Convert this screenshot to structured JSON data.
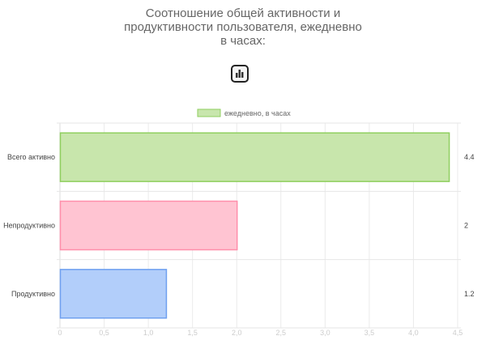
{
  "title": "Соотношение общей активности и продуктивности пользователя, ежедневно в часах:",
  "chart_type_button_icon": "bar-chart-icon",
  "chart_data": {
    "type": "bar",
    "orientation": "horizontal",
    "categories": [
      "Всего активно",
      "Непродуктивно",
      "Продуктивно"
    ],
    "series": [
      {
        "name": "ежедневно, в часах",
        "values": [
          4.4,
          2,
          1.2
        ]
      }
    ],
    "bar_colors": [
      "#c8e6ac",
      "#ffc4d2",
      "#b2cefa"
    ],
    "bar_border_colors": [
      "#8fcf5f",
      "#ff8fab",
      "#6fa0f0"
    ],
    "value_labels": [
      "4.4",
      "2",
      "1.2"
    ],
    "xlim": [
      0,
      4.5
    ],
    "x_ticks": [
      "0",
      "0,5",
      "1,0",
      "1,5",
      "2,0",
      "2,5",
      "3,0",
      "3,5",
      "4,0",
      "4,5"
    ],
    "grid": true,
    "legend_position": "top"
  }
}
